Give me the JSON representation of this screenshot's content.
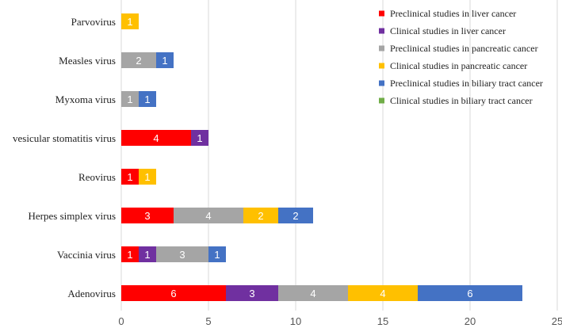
{
  "chart_data": {
    "type": "bar",
    "orientation": "horizontal",
    "stacked": true,
    "title": "",
    "xlabel": "",
    "ylabel": "",
    "xlim": [
      0,
      25
    ],
    "x_ticks": [
      0,
      5,
      10,
      15,
      20,
      25
    ],
    "grid": "vertical",
    "legend_position": "top-right",
    "categories": [
      "Parvovirus",
      "Measles virus",
      "Myxoma virus",
      "vesicular stomatitis virus",
      "Reovirus",
      "Herpes simplex virus",
      "Vaccinia virus",
      "Adenovirus"
    ],
    "series": [
      {
        "name": "Preclinical studies in liver cancer",
        "color": "#ff0000",
        "values": [
          0,
          0,
          0,
          4,
          1,
          3,
          1,
          6
        ]
      },
      {
        "name": "Clinical studies in liver cancer",
        "color": "#7030a0",
        "values": [
          0,
          0,
          0,
          1,
          0,
          0,
          1,
          3
        ]
      },
      {
        "name": "Preclinical studies in pancreatic cancer",
        "color": "#a5a5a5",
        "values": [
          0,
          2,
          1,
          0,
          0,
          4,
          3,
          4
        ]
      },
      {
        "name": "Clinical studies in pancreatic cancer",
        "color": "#ffc000",
        "values": [
          1,
          0,
          0,
          0,
          1,
          2,
          0,
          4
        ]
      },
      {
        "name": "Preclinical studies in biliary tract cancer",
        "color": "#4472c4",
        "values": [
          0,
          1,
          1,
          0,
          0,
          2,
          1,
          6
        ]
      },
      {
        "name": "Clinical studies in biliary tract cancer",
        "color": "#70ad47",
        "values": [
          0,
          0,
          0,
          0,
          0,
          0,
          0,
          0
        ]
      }
    ]
  }
}
